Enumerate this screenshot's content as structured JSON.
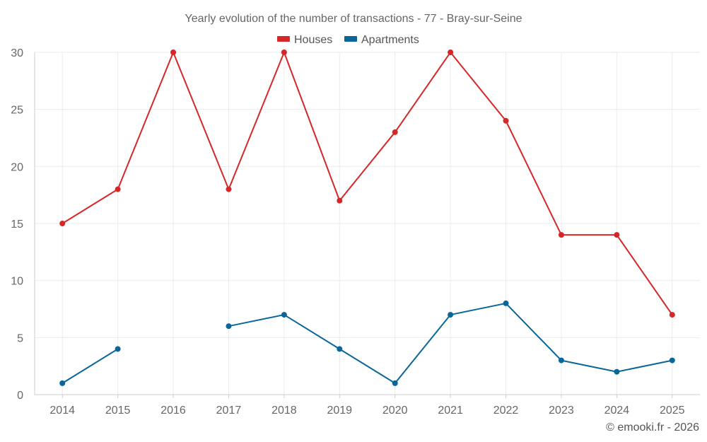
{
  "chart_data": {
    "type": "line",
    "title": "Yearly evolution of the number of transactions - 77 - Bray-sur-Seine",
    "categories": [
      "2014",
      "2015",
      "2016",
      "2017",
      "2018",
      "2019",
      "2020",
      "2021",
      "2022",
      "2023",
      "2024",
      "2025"
    ],
    "series": [
      {
        "name": "Houses",
        "color": "#d62728",
        "values": [
          15,
          18,
          30,
          18,
          30,
          17,
          23,
          30,
          24,
          14,
          14,
          7
        ]
      },
      {
        "name": "Apartments",
        "color": "#0a6699",
        "values": [
          1,
          4,
          null,
          6,
          7,
          4,
          1,
          7,
          8,
          3,
          2,
          3
        ]
      }
    ],
    "yticks": [
      "0",
      "5",
      "10",
      "15",
      "20",
      "25",
      "30"
    ],
    "ylim": [
      0,
      30
    ],
    "grid": true,
    "legend_position": "top-center"
  },
  "footer": {
    "credit": "© emooki.fr - 2026"
  }
}
